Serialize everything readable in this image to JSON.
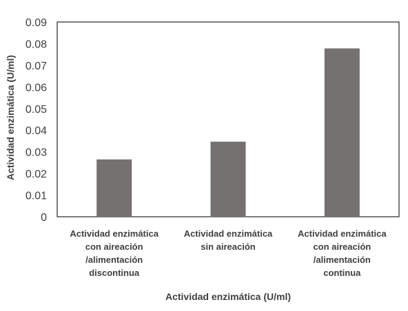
{
  "chart_data": {
    "type": "bar",
    "title": "",
    "xlabel": "Actividad enzimática (U/ml)",
    "ylabel": "Actividad enzimática (U/ml)",
    "ylim": [
      0,
      0.09
    ],
    "yticks": [
      "0",
      "0.01",
      "0.02",
      "0.03",
      "0.04",
      "0.05",
      "0.06",
      "0.07",
      "0.08",
      "0.09"
    ],
    "categories": [
      "Actividad enzimática con aireación /alimentación discontinua",
      "Actividad enzimática sin aireación",
      "Actividad enzimática con aireación /alimentación continua"
    ],
    "category_lines": [
      [
        "Actividad enzimática",
        "con aireación",
        "/alimentación",
        "discontinua"
      ],
      [
        "Actividad enzimática",
        "sin aireación"
      ],
      [
        "Actividad enzimática",
        "con aireación",
        "/alimentación",
        "continua"
      ]
    ],
    "values": [
      0.0265,
      0.0347,
      0.0778
    ],
    "bar_color": "#767171",
    "grid": false,
    "legend": "none"
  }
}
